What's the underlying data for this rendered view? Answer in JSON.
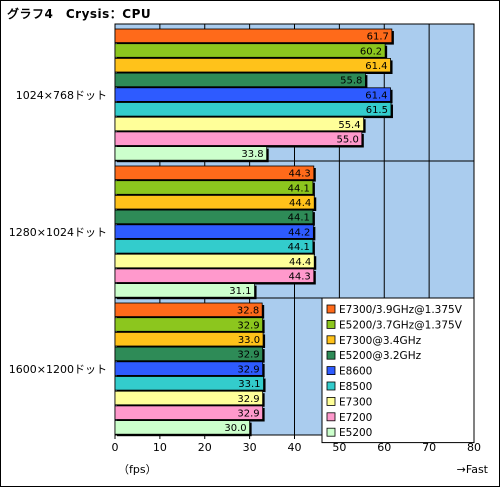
{
  "chart_data": {
    "type": "bar",
    "orientation": "horizontal",
    "title": "グラフ4　Crysis：CPU",
    "xlabel": "（fps）",
    "xlabel_right": "→Fast",
    "xlim": [
      0,
      80
    ],
    "xticks": [
      "0",
      "10",
      "20",
      "30",
      "40",
      "50",
      "60",
      "70",
      "80"
    ],
    "grid": true,
    "legend_position": "bottom-right",
    "categories": [
      "1024×768ドット",
      "1280×1024ドット",
      "1600×1200ドット"
    ],
    "series": [
      {
        "name": "E7300/3.9GHz@1.375V",
        "color": "#ff6a1a",
        "values": [
          61.7,
          44.3,
          32.8
        ],
        "labels": [
          "61.7",
          "44.3",
          "32.8"
        ]
      },
      {
        "name": "E5200/3.7GHz@1.375V",
        "color": "#8cc61e",
        "values": [
          60.2,
          44.1,
          32.9
        ],
        "labels": [
          "60.2",
          "44.1",
          "32.9"
        ]
      },
      {
        "name": "E7300@3.4GHz",
        "color": "#ffc21a",
        "values": [
          61.4,
          44.4,
          33.0
        ],
        "labels": [
          "61.4",
          "44.4",
          "33.0"
        ]
      },
      {
        "name": "E5200@3.2GHz",
        "color": "#2e8b57",
        "values": [
          55.8,
          44.1,
          32.9
        ],
        "labels": [
          "55.8",
          "44.1",
          "32.9"
        ]
      },
      {
        "name": "E8600",
        "color": "#2e5bff",
        "values": [
          61.4,
          44.2,
          32.9
        ],
        "labels": [
          "61.4",
          "44.2",
          "32.9"
        ]
      },
      {
        "name": "E8500",
        "color": "#33cccc",
        "values": [
          61.5,
          44.1,
          33.1
        ],
        "labels": [
          "61.5",
          "44.1",
          "33.1"
        ]
      },
      {
        "name": "E7300",
        "color": "#ffff99",
        "values": [
          55.4,
          44.4,
          32.9
        ],
        "labels": [
          "55.4",
          "44.4",
          "32.9"
        ]
      },
      {
        "name": "E7200",
        "color": "#ff99cc",
        "values": [
          55.0,
          44.3,
          32.9
        ],
        "labels": [
          "55.0",
          "44.3",
          "32.9"
        ]
      },
      {
        "name": "E5200",
        "color": "#ccffcc",
        "values": [
          33.8,
          31.1,
          30.0
        ],
        "labels": [
          "33.8",
          "31.1",
          "30.0"
        ]
      }
    ],
    "colors": {
      "plot_background": "#aaccee",
      "gridline": "#000000"
    }
  }
}
